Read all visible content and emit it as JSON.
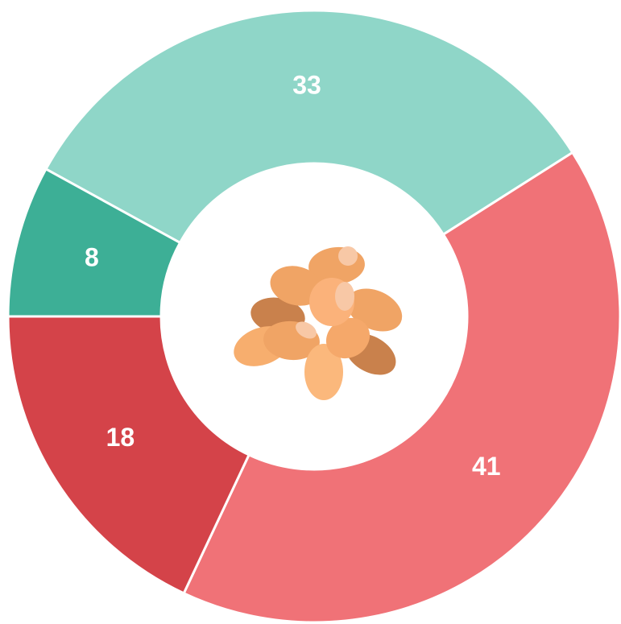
{
  "chart_data": {
    "type": "donut",
    "values": [
      33,
      41,
      18,
      8
    ],
    "colors": [
      "#8fd6c8",
      "#f07277",
      "#d44349",
      "#3daf96"
    ]
  }
}
